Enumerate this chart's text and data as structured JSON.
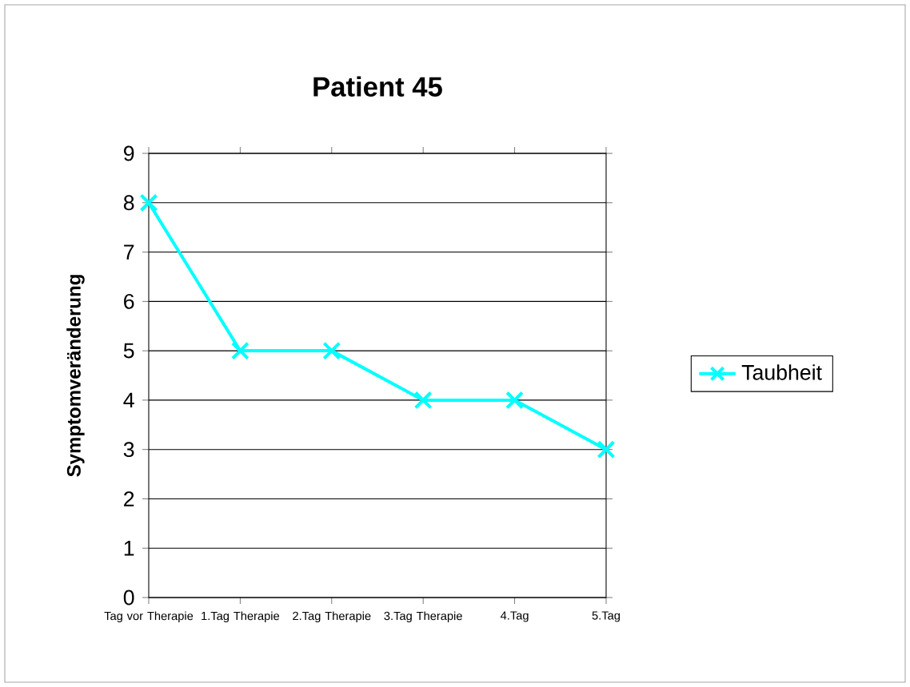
{
  "chart_data": {
    "type": "line",
    "title": "Patient 45",
    "ylabel": "Symptomveränderung",
    "categories": [
      "Tag vor Therapie",
      "1.Tag Therapie",
      "2.Tag Therapie",
      "3.Tag Therapie",
      "4.Tag",
      "5.Tag"
    ],
    "series": [
      {
        "name": "Taubheit",
        "color": "#00ffff",
        "values": [
          8,
          5,
          5,
          4,
          4,
          3
        ]
      }
    ],
    "ylim": [
      0,
      9
    ],
    "yticks": [
      0,
      1,
      2,
      3,
      4,
      5,
      6,
      7,
      8,
      9
    ],
    "grid": "y",
    "legend": "right",
    "marker": "cross",
    "line_style": "solid"
  }
}
